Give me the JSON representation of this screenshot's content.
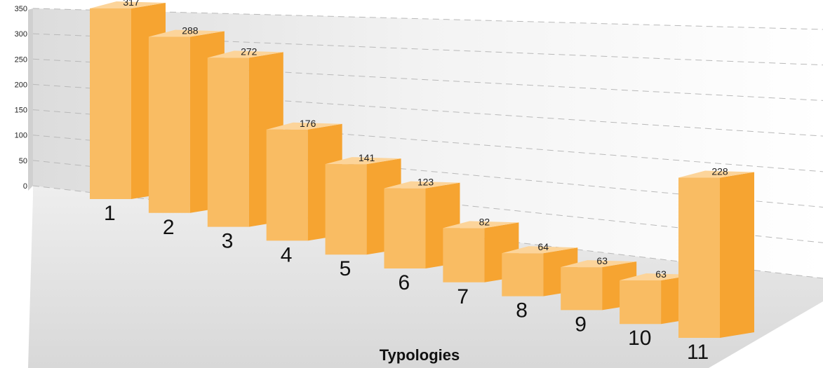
{
  "chart_data": {
    "type": "bar",
    "categories": [
      "1",
      "2",
      "3",
      "4",
      "5",
      "6",
      "7",
      "8",
      "9",
      "10",
      "11"
    ],
    "values": [
      317,
      288,
      272,
      176,
      141,
      123,
      82,
      64,
      63,
      63,
      228
    ],
    "title": "",
    "xlabel": "Typologies",
    "ylabel": "",
    "ylim": [
      0,
      350
    ],
    "yticks": [
      "0",
      "50",
      "100",
      "150",
      "200",
      "250",
      "300",
      "350"
    ],
    "grid": true,
    "colors": {
      "bar_front": "#F9BC63",
      "bar_side": "#F6A431",
      "bar_top": "#FCD49A",
      "wall": "#EBEBEB",
      "floor": "#E1E1E1"
    }
  }
}
